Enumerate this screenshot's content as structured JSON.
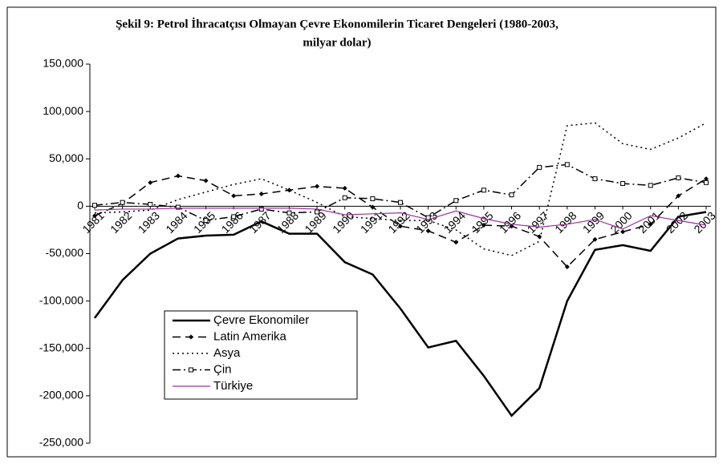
{
  "chart_data": {
    "type": "line",
    "title": [
      "Şekil 9: Petrol İhracatçısı Olmayan Çevre Ekonomilerin Ticaret Dengeleri (1980-2003,",
      "milyar dolar)"
    ],
    "categories": [
      "1981",
      "1982",
      "1983",
      "1984",
      "1985",
      "1986",
      "1987",
      "1988",
      "1989",
      "1990",
      "1991",
      "1992",
      "1993",
      "1994",
      "1995",
      "1996",
      "1997",
      "1998",
      "1999",
      "2000",
      "2001",
      "2002",
      "2003"
    ],
    "ylim": [
      -250000,
      150000
    ],
    "yticks": [
      {
        "value": -250000,
        "label": "-250,000"
      },
      {
        "value": -200000,
        "label": "-200,000"
      },
      {
        "value": -150000,
        "label": "-150,000"
      },
      {
        "value": -100000,
        "label": "-100,000"
      },
      {
        "value": -50000,
        "label": "-50,000"
      },
      0,
      {
        "value": 50000,
        "label": "50,000"
      },
      {
        "value": 100000,
        "label": "100,000"
      },
      {
        "value": 150000,
        "label": "150,000"
      }
    ],
    "grid": false,
    "legend": "lower-left",
    "series": [
      {
        "name": "Çevre Ekonomiler",
        "color": "#000000",
        "width": 2.5,
        "dash": "none",
        "marker": "none",
        "values": [
          -118000,
          -78000,
          -50000,
          -34000,
          -31000,
          -30000,
          -16000,
          -29000,
          -29000,
          -59000,
          -72000,
          -108000,
          -149000,
          -142000,
          -179000,
          -221000,
          -192000,
          -100000,
          -46000,
          -41000,
          -47000,
          -11000,
          -6000
        ]
      },
      {
        "name": "Latin Amerika",
        "color": "#000000",
        "width": 1.5,
        "dash": "10 6",
        "marker": "diamond",
        "values": [
          -10000,
          3000,
          25000,
          32000,
          27000,
          11000,
          13000,
          17000,
          21000,
          19000,
          -1000,
          -21000,
          -26000,
          -38000,
          -20000,
          -21000,
          -32000,
          -64000,
          -35000,
          -27000,
          -19000,
          11000,
          29000
        ]
      },
      {
        "name": "Asya",
        "color": "#000000",
        "width": 1.5,
        "dash": "2 4",
        "marker": "none",
        "values": [
          -7000,
          -6000,
          -4000,
          7000,
          15000,
          23000,
          29000,
          17000,
          4000,
          -11000,
          -13000,
          -15000,
          -15000,
          -25000,
          -45000,
          -52000,
          -37000,
          85000,
          88000,
          66000,
          60000,
          72000,
          88000
        ]
      },
      {
        "name": "Çin",
        "color": "#000000",
        "width": 1.5,
        "dash": "10 4 2 4",
        "marker": "square",
        "values": [
          1000,
          4000,
          2000,
          -1000,
          -15000,
          -11000,
          -3000,
          -7000,
          -6000,
          9000,
          8000,
          4000,
          -12000,
          6000,
          17000,
          12000,
          41000,
          44000,
          29000,
          24000,
          22000,
          30000,
          25000
        ]
      },
      {
        "name": "Türkiye",
        "color": "#993399",
        "width": 1.2,
        "dash": "none",
        "marker": "none",
        "values": [
          -4000,
          -3000,
          -3000,
          -2000,
          -2000,
          -2000,
          -2000,
          -2000,
          -3000,
          -9000,
          -8000,
          -7000,
          -14000,
          -5000,
          -13000,
          -19000,
          -22000,
          -19000,
          -14000,
          -24000,
          -10000,
          -15000,
          -20000
        ]
      }
    ]
  }
}
